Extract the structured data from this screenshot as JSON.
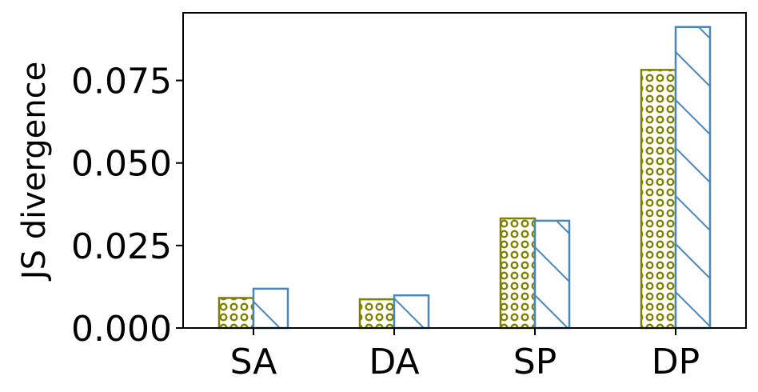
{
  "chart_data": {
    "type": "bar",
    "categories": [
      "SA",
      "DA",
      "SP",
      "DP"
    ],
    "series": [
      {
        "values": [
          0.0091,
          0.0087,
          0.0332,
          0.0782
        ],
        "color": "#808000",
        "pattern": "circles"
      },
      {
        "values": [
          0.0119,
          0.0099,
          0.0325,
          0.0912
        ],
        "color": "#4a86b8",
        "pattern": "diagonal-hatch"
      }
    ],
    "xlabel": "",
    "ylabel": "JS divergence",
    "ylim": [
      0,
      0.0955
    ],
    "yticks": [
      0.0,
      0.025,
      0.05,
      0.075
    ],
    "ytick_labels": [
      "0.000",
      "0.025",
      "0.050",
      "0.075"
    ],
    "grid": false,
    "legend": false
  }
}
